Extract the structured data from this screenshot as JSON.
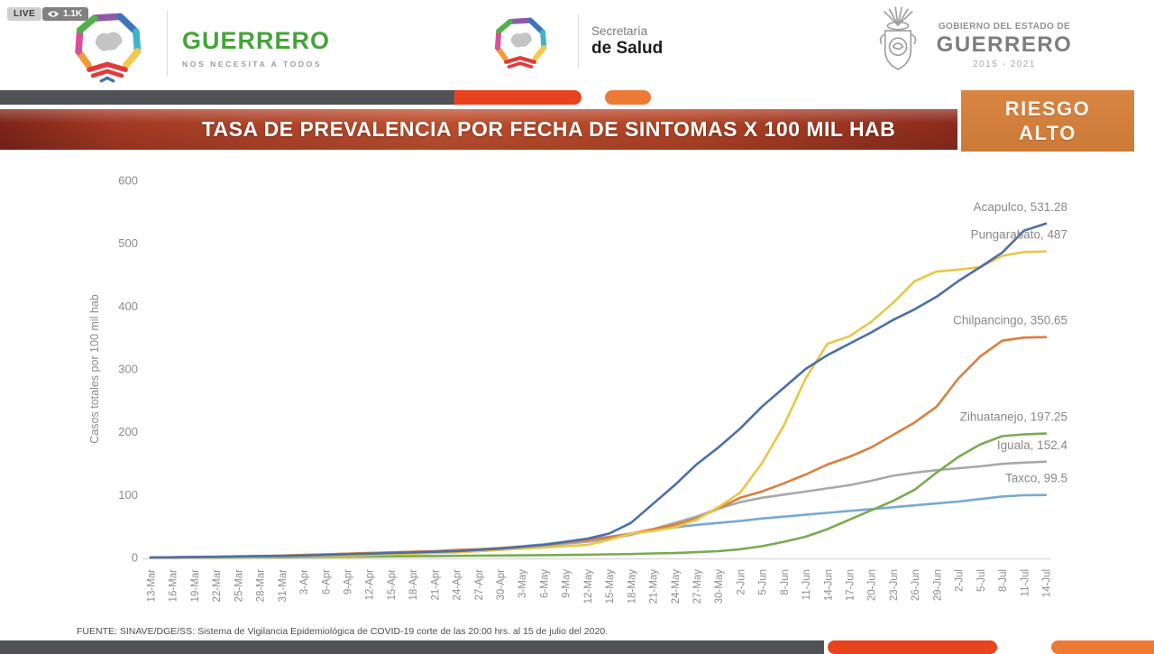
{
  "overlay": {
    "live_label": "LIVE",
    "viewer_count": "1.1K"
  },
  "header": {
    "guerrero": {
      "title": "GUERRERO",
      "subtitle": "NOS NECESITA A TODOS"
    },
    "salud": {
      "line1": "Secretaría",
      "line2": "de Salud"
    },
    "gobierno": {
      "line1": "GOBIERNO DEL ESTADO DE",
      "line2": "GUERRERO",
      "line3": "2015 - 2021"
    }
  },
  "banner": {
    "title": "TASA DE PREVALENCIA POR FECHA DE SINTOMAS X 100 MIL HAB",
    "risk_line1": "RIESGO",
    "risk_line2": "ALTO"
  },
  "footer": {
    "source": "FUENTE: SINAVE/DGE/SS: Sistema de Vigilancia Epidemiológica de COVID-19 corte de las 20:00 hrs. al 15 de julio del 2020."
  },
  "colors": {
    "banner_red": "#a23823",
    "risk_orange": "#cc7a38",
    "stripe_dark": "#515256",
    "stripe_red": "#e7431d",
    "stripe_orange": "#ec7a35",
    "guerrero_green": "#43a538"
  },
  "chart_data": {
    "type": "line",
    "title": "",
    "xlabel": "",
    "ylabel": "Casos totales por 100 mil hab",
    "ylim": [
      0,
      600
    ],
    "yticks": [
      0,
      100,
      200,
      300,
      400,
      500,
      600
    ],
    "grid": false,
    "legend_position": "end-of-line-labels",
    "categories": [
      "13-Mar",
      "16-Mar",
      "19-Mar",
      "22-Mar",
      "25-Mar",
      "28-Mar",
      "31-Mar",
      "3-Apr",
      "6-Apr",
      "9-Apr",
      "12-Apr",
      "15-Apr",
      "18-Apr",
      "21-Apr",
      "24-Apr",
      "27-Apr",
      "30-Apr",
      "3-May",
      "6-May",
      "9-May",
      "12-May",
      "15-May",
      "18-May",
      "21-May",
      "24-May",
      "27-May",
      "30-May",
      "2-Jun",
      "5-Jun",
      "8-Jun",
      "11-Jun",
      "14-Jun",
      "17-Jun",
      "20-Jun",
      "23-Jun",
      "26-Jun",
      "29-Jun",
      "2-Jul",
      "5-Jul",
      "8-Jul",
      "11-Jul",
      "14-Jul"
    ],
    "series": [
      {
        "name": "Acapulco",
        "label": "Acapulco, 531.28",
        "final_value": 531.28,
        "color": "#4a6fa8",
        "values": [
          0,
          0.3,
          0.6,
          1,
          1.5,
          2,
          2.5,
          3,
          4,
          5,
          6,
          7,
          8,
          9,
          10,
          12,
          14,
          17,
          20,
          25,
          30,
          38,
          55,
          85,
          115,
          148,
          175,
          205,
          240,
          270,
          300,
          322,
          340,
          358,
          378,
          395,
          415,
          440,
          462,
          485,
          520,
          531.28
        ]
      },
      {
        "name": "Pungarabato",
        "label": "Pungarabato, 487",
        "final_value": 487,
        "color": "#e9c647",
        "values": [
          0,
          0,
          0,
          0,
          0.5,
          1,
          1.5,
          2,
          2.5,
          3,
          4,
          5,
          6,
          7,
          8,
          10,
          12,
          14,
          16,
          18,
          20,
          28,
          38,
          42,
          48,
          60,
          80,
          103,
          150,
          210,
          285,
          340,
          352,
          375,
          405,
          440,
          455,
          458,
          462,
          480,
          486,
          487
        ]
      },
      {
        "name": "Chilpancingo",
        "label": "Chilpancingo, 350.65",
        "final_value": 350.65,
        "color": "#d87f3e",
        "values": [
          0,
          0.3,
          0.6,
          1,
          1.5,
          2,
          3,
          4,
          5,
          6,
          7,
          8,
          9,
          10,
          12,
          13,
          15,
          17,
          20,
          24,
          28,
          32,
          38,
          45,
          52,
          62,
          78,
          95,
          105,
          118,
          132,
          148,
          160,
          175,
          195,
          215,
          240,
          285,
          320,
          345,
          350,
          350.65
        ]
      },
      {
        "name": "Zihuatanejo",
        "label": "Zihuatanejo, 197.25",
        "final_value": 197.25,
        "color": "#79ab50",
        "values": [
          0,
          0,
          0,
          0,
          0,
          0.3,
          0.5,
          0.8,
          1,
          1.2,
          1.5,
          1.8,
          2,
          2.3,
          2.6,
          3,
          3.2,
          3.5,
          3.8,
          4,
          4.5,
          5,
          5.5,
          6.5,
          7,
          8.5,
          10,
          13,
          18,
          25,
          33,
          45,
          60,
          75,
          90,
          108,
          135,
          160,
          180,
          193,
          196,
          197.25
        ]
      },
      {
        "name": "Iguala",
        "label": "Iguala, 152.4",
        "final_value": 152.4,
        "color": "#a8a8a8",
        "values": [
          0,
          0.3,
          0.6,
          1,
          1.5,
          2,
          2.5,
          3,
          3.5,
          4,
          5,
          6,
          7,
          8,
          9,
          10,
          12,
          15,
          18,
          22,
          25,
          30,
          36,
          45,
          55,
          65,
          78,
          88,
          95,
          100,
          105,
          110,
          115,
          122,
          130,
          135,
          139,
          142,
          145,
          149,
          151,
          152.4
        ]
      },
      {
        "name": "Taxco",
        "label": "Taxco, 99.5",
        "final_value": 99.5,
        "color": "#78a9d3",
        "values": [
          0,
          0.5,
          1,
          1.5,
          2,
          2.5,
          3,
          4,
          5,
          6,
          7,
          8,
          9,
          10,
          11,
          13,
          15,
          18,
          21,
          25,
          29,
          33,
          38,
          43,
          48,
          52,
          55,
          58,
          62,
          65,
          68,
          71,
          74,
          77,
          80,
          83,
          86,
          89,
          93,
          97,
          99,
          99.5
        ]
      }
    ]
  }
}
